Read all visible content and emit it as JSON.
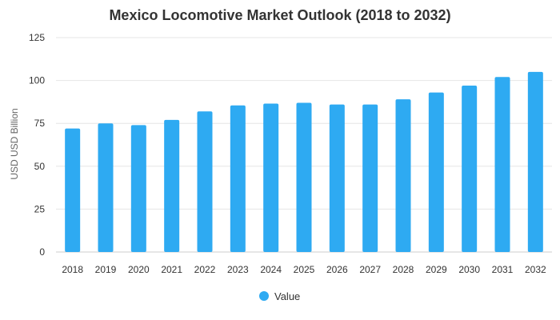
{
  "chart_data": {
    "type": "bar",
    "title": "Mexico Locomotive Market Outlook (2018 to 2032)",
    "xlabel": "",
    "ylabel": "USD USD Billion",
    "categories": [
      "2018",
      "2019",
      "2020",
      "2021",
      "2022",
      "2023",
      "2024",
      "2025",
      "2026",
      "2027",
      "2028",
      "2029",
      "2030",
      "2031",
      "2032"
    ],
    "series": [
      {
        "name": "Value",
        "values": [
          72,
          75,
          74,
          77,
          82,
          85.5,
          86.5,
          87,
          86,
          86,
          89,
          93,
          97,
          102,
          105
        ]
      }
    ],
    "ylim": [
      0,
      125
    ],
    "yticks": [
      "0",
      "25",
      "50",
      "75",
      "100",
      "125"
    ],
    "grid": true,
    "legend": "bottom-center",
    "colors": {
      "bar": "#2eaaf2"
    }
  }
}
